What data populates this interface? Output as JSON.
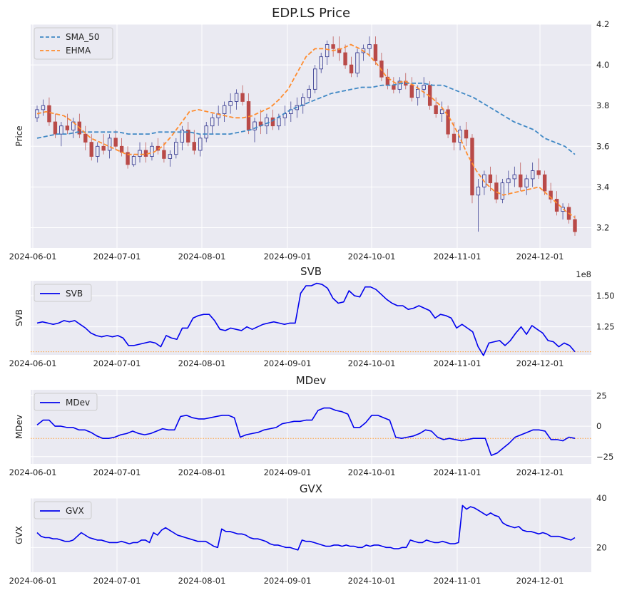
{
  "chart_data": [
    {
      "type": "candlestick+line",
      "title": "EDP.LS Price",
      "ylabel": "Price",
      "xlabel": "",
      "x_ticks": [
        "2024-06-01",
        "2024-07-01",
        "2024-08-01",
        "2024-09-01",
        "2024-10-01",
        "2024-11-01",
        "2024-12-01"
      ],
      "ylim": [
        3.1,
        4.2
      ],
      "y_ticks": [
        "3.2",
        "3.4",
        "3.6",
        "3.8",
        "4.0",
        "4.2"
      ],
      "y_tick_values": [
        3.2,
        3.4,
        3.6,
        3.8,
        4.0,
        4.2
      ],
      "legend": [
        "SMA_50",
        "EHMA"
      ],
      "legend_position": "top-left",
      "colors": {
        "SMA_50": "#3f88c5",
        "EHMA": "#ff8c2e",
        "up": "#2b2f8a",
        "down": "#b94a48"
      },
      "ohlc": [
        [
          3.74,
          3.8,
          3.72,
          3.78
        ],
        [
          3.78,
          3.83,
          3.75,
          3.8
        ],
        [
          3.8,
          3.84,
          3.7,
          3.72
        ],
        [
          3.72,
          3.76,
          3.64,
          3.66
        ],
        [
          3.66,
          3.72,
          3.6,
          3.7
        ],
        [
          3.7,
          3.76,
          3.66,
          3.68
        ],
        [
          3.68,
          3.74,
          3.64,
          3.72
        ],
        [
          3.72,
          3.76,
          3.64,
          3.66
        ],
        [
          3.66,
          3.7,
          3.58,
          3.62
        ],
        [
          3.62,
          3.66,
          3.53,
          3.55
        ],
        [
          3.55,
          3.62,
          3.52,
          3.6
        ],
        [
          3.6,
          3.66,
          3.56,
          3.58
        ],
        [
          3.58,
          3.66,
          3.54,
          3.64
        ],
        [
          3.64,
          3.68,
          3.58,
          3.6
        ],
        [
          3.6,
          3.64,
          3.55,
          3.57
        ],
        [
          3.57,
          3.6,
          3.49,
          3.51
        ],
        [
          3.51,
          3.56,
          3.5,
          3.55
        ],
        [
          3.55,
          3.62,
          3.52,
          3.58
        ],
        [
          3.58,
          3.62,
          3.52,
          3.55
        ],
        [
          3.55,
          3.62,
          3.53,
          3.6
        ],
        [
          3.6,
          3.64,
          3.56,
          3.58
        ],
        [
          3.58,
          3.62,
          3.52,
          3.54
        ],
        [
          3.54,
          3.58,
          3.5,
          3.56
        ],
        [
          3.56,
          3.64,
          3.54,
          3.62
        ],
        [
          3.62,
          3.7,
          3.58,
          3.68
        ],
        [
          3.68,
          3.72,
          3.6,
          3.62
        ],
        [
          3.62,
          3.68,
          3.56,
          3.58
        ],
        [
          3.58,
          3.66,
          3.55,
          3.64
        ],
        [
          3.64,
          3.72,
          3.62,
          3.7
        ],
        [
          3.7,
          3.76,
          3.66,
          3.74
        ],
        [
          3.74,
          3.8,
          3.7,
          3.76
        ],
        [
          3.76,
          3.82,
          3.72,
          3.8
        ],
        [
          3.8,
          3.86,
          3.76,
          3.82
        ],
        [
          3.82,
          3.88,
          3.78,
          3.86
        ],
        [
          3.86,
          3.9,
          3.8,
          3.82
        ],
        [
          3.82,
          3.86,
          3.66,
          3.68
        ],
        [
          3.68,
          3.74,
          3.62,
          3.72
        ],
        [
          3.72,
          3.78,
          3.66,
          3.7
        ],
        [
          3.7,
          3.76,
          3.66,
          3.74
        ],
        [
          3.74,
          3.78,
          3.68,
          3.7
        ],
        [
          3.7,
          3.76,
          3.68,
          3.74
        ],
        [
          3.74,
          3.8,
          3.7,
          3.76
        ],
        [
          3.76,
          3.82,
          3.72,
          3.78
        ],
        [
          3.78,
          3.84,
          3.74,
          3.8
        ],
        [
          3.8,
          3.86,
          3.76,
          3.84
        ],
        [
          3.84,
          3.9,
          3.82,
          3.88
        ],
        [
          3.88,
          4.0,
          3.86,
          3.98
        ],
        [
          3.98,
          4.06,
          3.96,
          4.04
        ],
        [
          4.04,
          4.12,
          4.0,
          4.1
        ],
        [
          4.1,
          4.14,
          4.04,
          4.08
        ],
        [
          4.08,
          4.14,
          4.02,
          4.06
        ],
        [
          4.06,
          4.1,
          3.98,
          4.0
        ],
        [
          4.0,
          4.04,
          3.94,
          3.96
        ],
        [
          3.96,
          4.08,
          3.94,
          4.06
        ],
        [
          4.06,
          4.1,
          4.02,
          4.08
        ],
        [
          4.08,
          4.14,
          4.04,
          4.1
        ],
        [
          4.1,
          4.14,
          4.0,
          4.02
        ],
        [
          4.02,
          4.06,
          3.92,
          3.94
        ],
        [
          3.94,
          3.98,
          3.88,
          3.9
        ],
        [
          3.9,
          3.94,
          3.86,
          3.88
        ],
        [
          3.88,
          3.94,
          3.86,
          3.92
        ],
        [
          3.92,
          3.96,
          3.88,
          3.9
        ],
        [
          3.9,
          3.94,
          3.82,
          3.84
        ],
        [
          3.84,
          3.9,
          3.8,
          3.88
        ],
        [
          3.88,
          3.94,
          3.84,
          3.9
        ],
        [
          3.9,
          3.92,
          3.78,
          3.8
        ],
        [
          3.8,
          3.84,
          3.74,
          3.76
        ],
        [
          3.76,
          3.82,
          3.72,
          3.78
        ],
        [
          3.78,
          3.8,
          3.64,
          3.66
        ],
        [
          3.66,
          3.72,
          3.58,
          3.62
        ],
        [
          3.62,
          3.7,
          3.58,
          3.68
        ],
        [
          3.68,
          3.72,
          3.6,
          3.64
        ],
        [
          3.64,
          3.66,
          3.32,
          3.36
        ],
        [
          3.36,
          3.44,
          3.18,
          3.4
        ],
        [
          3.4,
          3.48,
          3.36,
          3.46
        ],
        [
          3.46,
          3.5,
          3.38,
          3.42
        ],
        [
          3.42,
          3.46,
          3.32,
          3.34
        ],
        [
          3.34,
          3.44,
          3.32,
          3.42
        ],
        [
          3.42,
          3.48,
          3.36,
          3.44
        ],
        [
          3.44,
          3.5,
          3.4,
          3.46
        ],
        [
          3.46,
          3.52,
          3.38,
          3.4
        ],
        [
          3.4,
          3.46,
          3.36,
          3.44
        ],
        [
          3.44,
          3.52,
          3.4,
          3.48
        ],
        [
          3.48,
          3.54,
          3.44,
          3.46
        ],
        [
          3.46,
          3.48,
          3.36,
          3.38
        ],
        [
          3.38,
          3.42,
          3.32,
          3.34
        ],
        [
          3.34,
          3.38,
          3.26,
          3.28
        ],
        [
          3.28,
          3.32,
          3.24,
          3.3
        ],
        [
          3.3,
          3.32,
          3.22,
          3.24
        ],
        [
          3.24,
          3.26,
          3.16,
          3.18
        ]
      ],
      "series": [
        {
          "name": "SMA_50",
          "values": [
            3.64,
            3.65,
            3.66,
            3.66,
            3.67,
            3.67,
            3.67,
            3.67,
            3.67,
            3.66,
            3.66,
            3.66,
            3.67,
            3.67,
            3.67,
            3.67,
            3.66,
            3.66,
            3.66,
            3.66,
            3.67,
            3.68,
            3.7,
            3.72,
            3.75,
            3.78,
            3.8,
            3.82,
            3.84,
            3.86,
            3.87,
            3.88,
            3.89,
            3.89,
            3.9,
            3.9,
            3.91,
            3.91,
            3.91,
            3.9,
            3.9,
            3.88,
            3.86,
            3.84,
            3.81,
            3.78,
            3.75,
            3.72,
            3.7,
            3.68,
            3.64,
            3.62,
            3.6,
            3.56
          ]
        },
        {
          "name": "EHMA",
          "values": [
            3.76,
            3.77,
            3.76,
            3.75,
            3.72,
            3.68,
            3.64,
            3.62,
            3.6,
            3.58,
            3.56,
            3.56,
            3.56,
            3.57,
            3.6,
            3.65,
            3.71,
            3.77,
            3.78,
            3.77,
            3.76,
            3.75,
            3.74,
            3.74,
            3.75,
            3.77,
            3.79,
            3.83,
            3.88,
            3.96,
            4.04,
            4.08,
            4.08,
            4.07,
            4.08,
            4.1,
            4.08,
            4.05,
            4.0,
            3.94,
            3.91,
            3.92,
            3.9,
            3.87,
            3.84,
            3.8,
            3.74,
            3.66,
            3.56,
            3.48,
            3.42,
            3.38,
            3.36,
            3.37,
            3.38,
            3.39,
            3.4,
            3.36,
            3.32,
            3.28,
            3.25
          ]
        }
      ]
    },
    {
      "type": "line",
      "title": "SVB",
      "ylabel": "SVB",
      "multiplier": "1e8",
      "x_ticks": [
        "2024-06-01",
        "2024-07-01",
        "2024-08-01",
        "2024-09-01",
        "2024-10-01",
        "2024-11-01",
        "2024-12-01"
      ],
      "ylim": [
        102500000.0,
        162000000.0
      ],
      "y_ticks": [
        "1.25",
        "1.50"
      ],
      "y_tick_values": [
        125000000.0,
        150000000.0
      ],
      "hline": 105000000.0,
      "legend": [
        "SVB"
      ],
      "legend_position": "top-left",
      "colors": {
        "line": "#0000ee",
        "hline": "#ff9f3a"
      },
      "series": [
        {
          "name": "SVB",
          "values": [
            128000000.0,
            129000000.0,
            128000000.0,
            127000000.0,
            128000000.0,
            130000000.0,
            129000000.0,
            130000000.0,
            127000000.0,
            124000000.0,
            120000000.0,
            118000000.0,
            117000000.0,
            118000000.0,
            117000000.0,
            118000000.0,
            116000000.0,
            110000000.0,
            110000000.0,
            111000000.0,
            112000000.0,
            113000000.0,
            112000000.0,
            109000000.0,
            118000000.0,
            116000000.0,
            115000000.0,
            124000000.0,
            124000000.0,
            132000000.0,
            134000000.0,
            135000000.0,
            135000000.0,
            130000000.0,
            123000000.0,
            122000000.0,
            124000000.0,
            123000000.0,
            122000000.0,
            125000000.0,
            123000000.0,
            125000000.0,
            127000000.0,
            128000000.0,
            129000000.0,
            128000000.0,
            127000000.0,
            128000000.0,
            128000000.0,
            152000000.0,
            158000000.0,
            158000000.0,
            160000000.0,
            159000000.0,
            156000000.0,
            148000000.0,
            144000000.0,
            145000000.0,
            154000000.0,
            150000000.0,
            149000000.0,
            157000000.0,
            157000000.0,
            155000000.0,
            151000000.0,
            147000000.0,
            144000000.0,
            142000000.0,
            142000000.0,
            139000000.0,
            140000000.0,
            142000000.0,
            140000000.0,
            138000000.0,
            132000000.0,
            135000000.0,
            134000000.0,
            132000000.0,
            124000000.0,
            127000000.0,
            124000000.0,
            121000000.0,
            109000000.0,
            102000000.0,
            112000000.0,
            113000000.0,
            114000000.0,
            110000000.0,
            114000000.0,
            120000000.0,
            125000000.0,
            119000000.0,
            126000000.0,
            123000000.0,
            120000000.0,
            114000000.0,
            113000000.0,
            109000000.0,
            112000000.0,
            110000000.0,
            105000000.0
          ]
        }
      ]
    },
    {
      "type": "line",
      "title": "MDev",
      "ylabel": "MDev",
      "x_ticks": [
        "2024-06-01",
        "2024-07-01",
        "2024-08-01",
        "2024-09-01",
        "2024-10-01",
        "2024-11-01",
        "2024-12-01"
      ],
      "ylim": [
        -31,
        30
      ],
      "y_ticks": [
        "25",
        "0",
        "−25"
      ],
      "y_tick_values": [
        25,
        0,
        -25
      ],
      "hline": -10,
      "legend": [
        "MDev"
      ],
      "legend_position": "top-left",
      "colors": {
        "line": "#0000ee",
        "hline": "#ff9f3a"
      },
      "series": [
        {
          "name": "MDev",
          "values": [
            1,
            5,
            5,
            0,
            0,
            -1,
            -1,
            -3,
            -3,
            -5,
            -8,
            -10,
            -10,
            -9,
            -7,
            -6,
            -4,
            -6,
            -7,
            -6,
            -4,
            -2,
            -3,
            -3,
            8,
            9,
            7,
            6,
            6,
            7,
            8,
            9,
            9,
            7,
            -9,
            -7,
            -6,
            -5,
            -3,
            -2,
            -1,
            2,
            3,
            4,
            4,
            5,
            5,
            13,
            15,
            15,
            13,
            12,
            10,
            -1,
            -1,
            3,
            9,
            9,
            7,
            5,
            -9,
            -10,
            -9,
            -8,
            -6,
            -3,
            -4,
            -9,
            -11,
            -10,
            -11,
            -12,
            -11,
            -10,
            -10,
            -10,
            -24,
            -22,
            -18,
            -14,
            -9,
            -7,
            -5,
            -3,
            -3,
            -4,
            -11,
            -11,
            -12,
            -9,
            -10
          ]
        }
      ]
    },
    {
      "type": "line",
      "title": "GVX",
      "ylabel": "GVX",
      "x_ticks": [
        "2024-06-01",
        "2024-07-01",
        "2024-08-01",
        "2024-09-01",
        "2024-10-01",
        "2024-11-01",
        "2024-12-01"
      ],
      "ylim": [
        10,
        40
      ],
      "y_ticks": [
        "40",
        "20"
      ],
      "y_tick_values": [
        40,
        20
      ],
      "legend": [
        "GVX"
      ],
      "legend_position": "top-left",
      "colors": {
        "line": "#0000ee"
      },
      "series": [
        {
          "name": "GVX",
          "values": [
            26,
            24.5,
            24,
            24,
            23.5,
            23.5,
            23,
            22.5,
            22.5,
            23,
            24.5,
            26,
            25,
            24,
            23.5,
            23,
            23,
            22.5,
            22,
            22,
            22,
            22.5,
            22,
            21.5,
            22,
            22,
            23,
            23,
            22,
            26,
            25,
            27,
            28,
            27,
            26,
            25,
            24.5,
            24,
            23.5,
            23,
            22.5,
            22.5,
            22.5,
            21.5,
            20.5,
            20,
            27.5,
            26.5,
            26.5,
            26,
            25.5,
            25.5,
            25,
            24,
            23.5,
            23.5,
            23,
            22.5,
            21.5,
            21,
            21,
            20.5,
            20,
            20,
            19.5,
            19,
            23,
            22.5,
            22.5,
            22,
            21.5,
            21,
            20.5,
            20.5,
            21,
            21,
            20.5,
            21,
            20.5,
            20.5,
            20,
            20,
            21,
            20.5,
            21,
            21,
            20.5,
            20,
            20,
            19.5,
            19.5,
            20,
            20,
            23,
            22.5,
            22,
            22,
            23,
            22.5,
            22,
            22,
            22.5,
            22,
            21.5,
            21.5,
            22,
            37,
            35.5,
            36.5,
            36,
            35,
            34,
            33,
            34,
            33,
            32.5,
            30,
            29,
            28.5,
            28,
            28.5,
            27,
            26.5,
            26.5,
            26,
            25.5,
            26,
            25.5,
            24.5,
            24.5,
            24.5,
            24,
            23.5,
            23,
            24
          ]
        }
      ]
    }
  ]
}
